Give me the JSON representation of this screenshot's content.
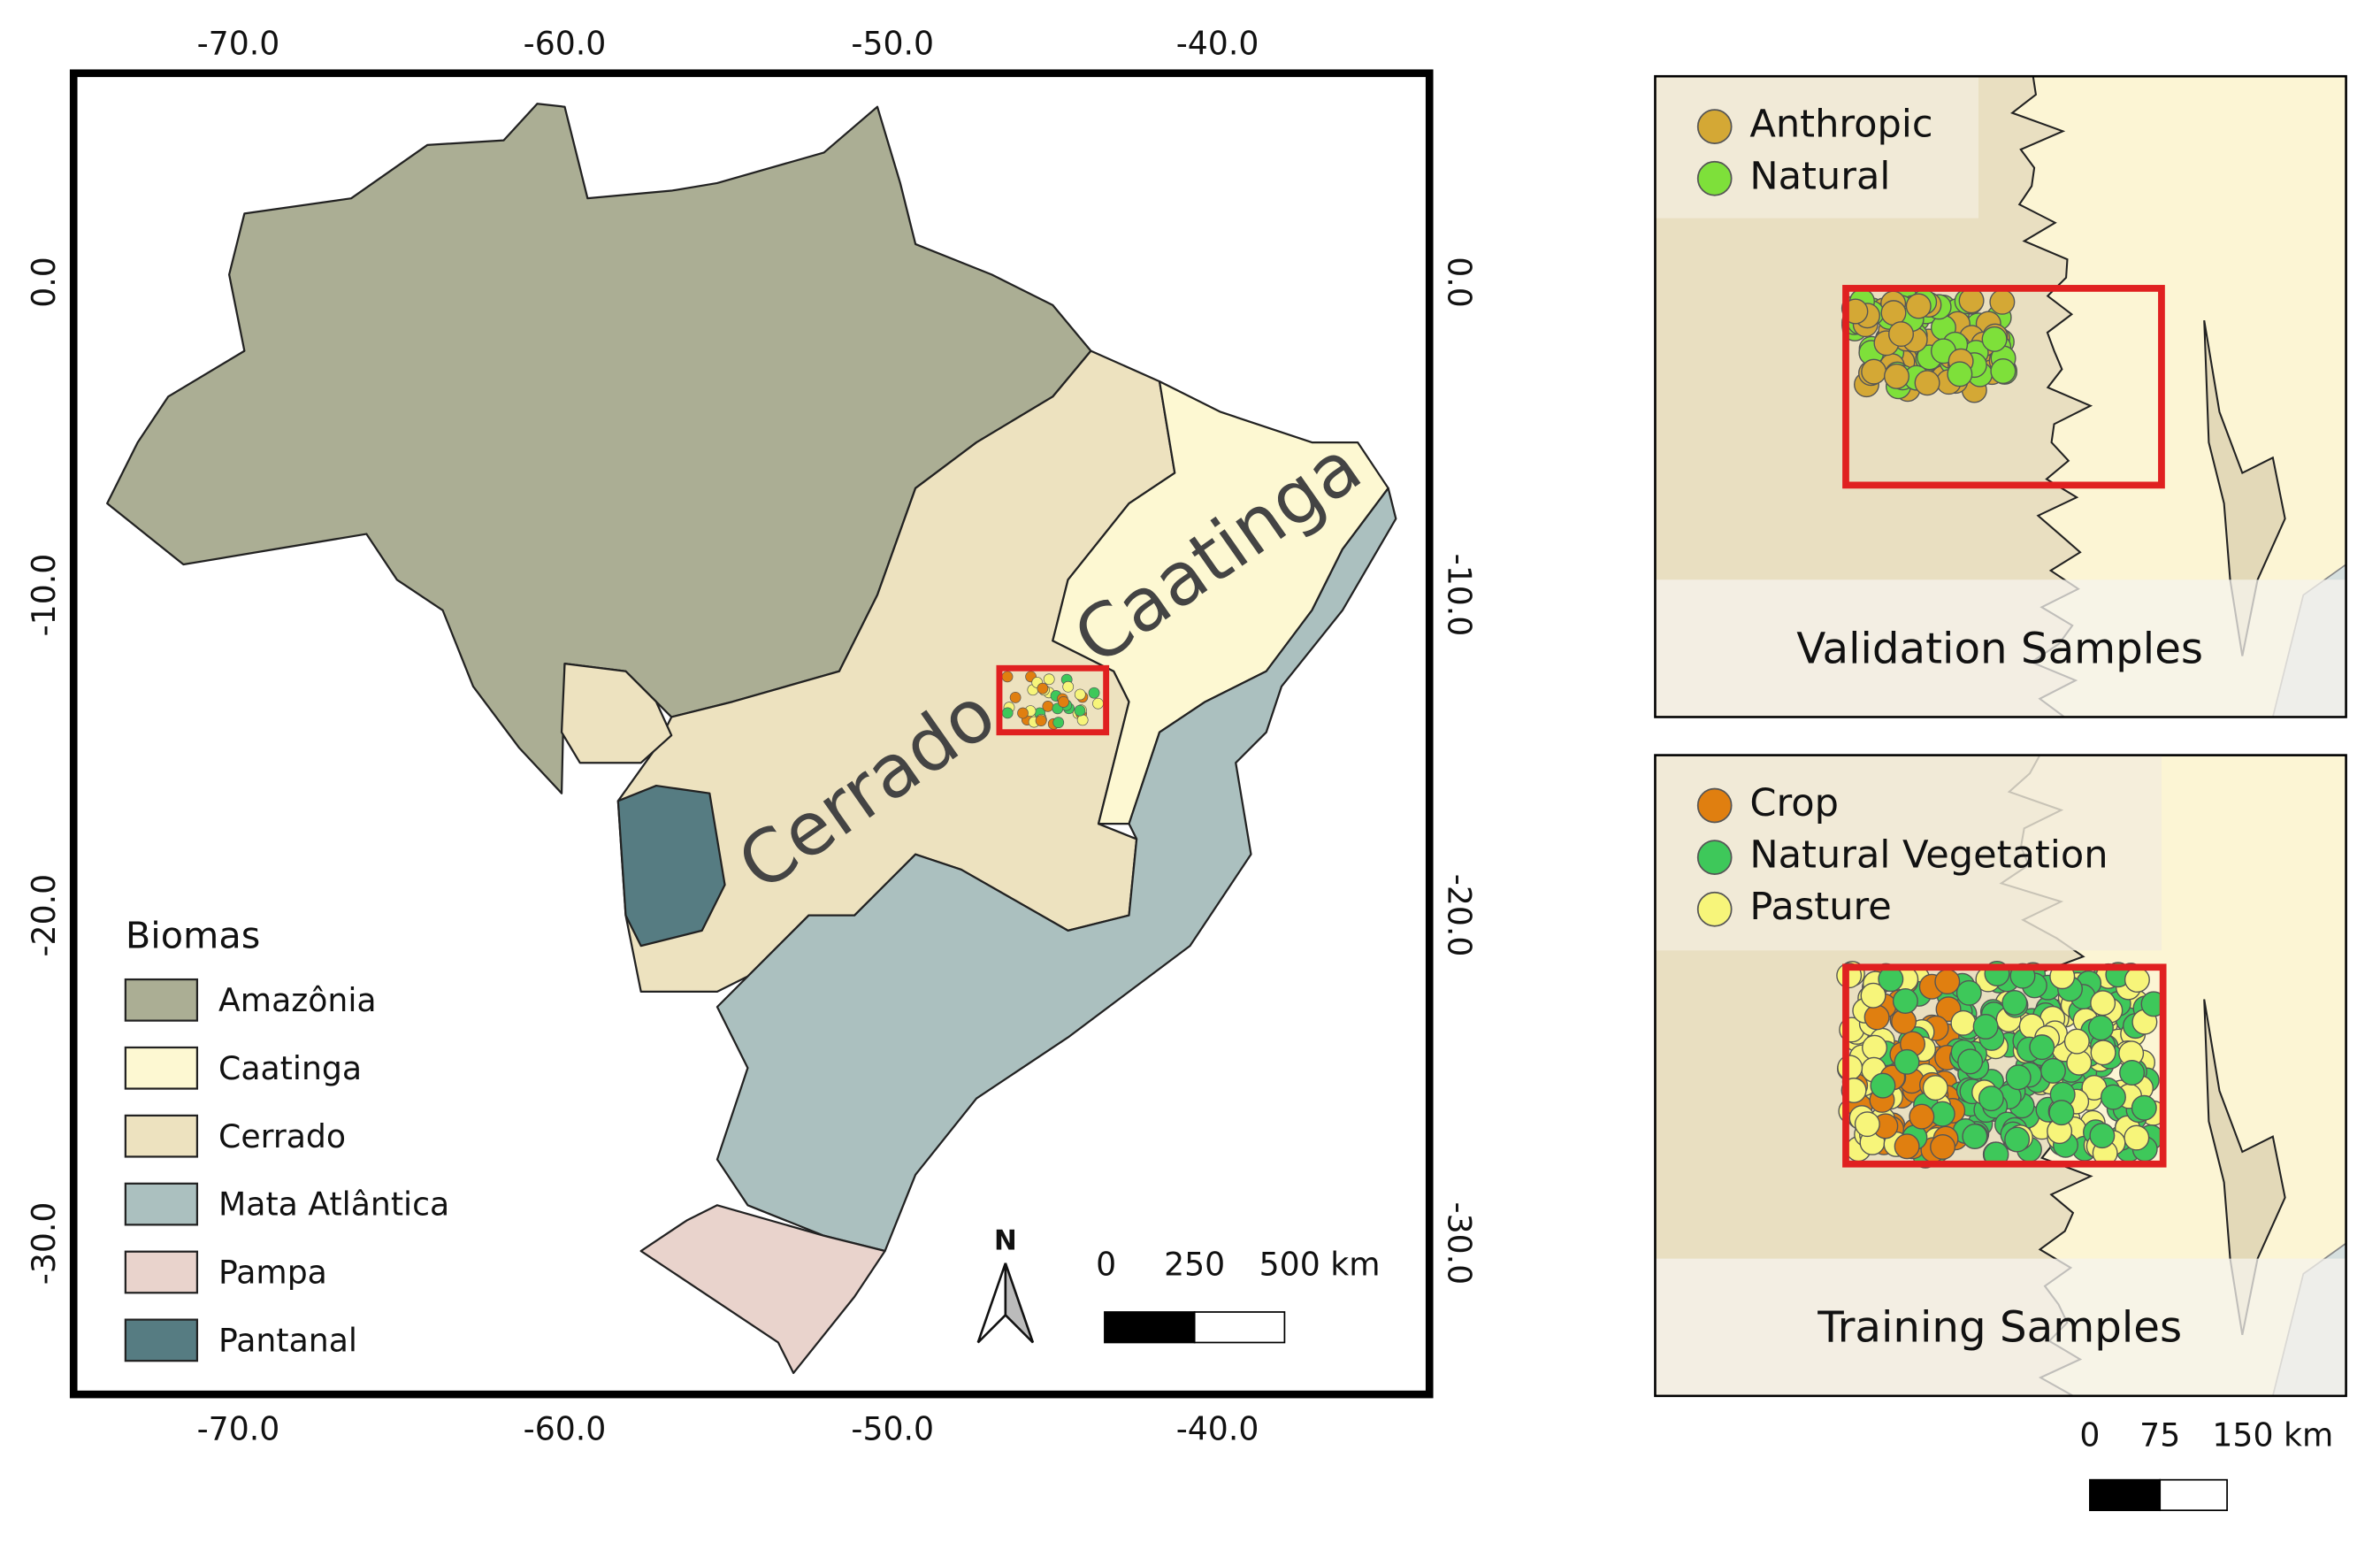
{
  "main_map": {
    "top_ticks": [
      "-70.0",
      "-60.0",
      "-50.0",
      "-40.0"
    ],
    "bottom_ticks": [
      "-70.0",
      "-60.0",
      "-50.0",
      "-40.0"
    ],
    "left_ticks": [
      "0.0",
      "-10.0",
      "-20.0",
      "-30.0"
    ],
    "right_ticks": [
      "0.0",
      "-10.0",
      "-20.0",
      "-30.0"
    ],
    "labels": [
      "Cerrado",
      "Caatinga"
    ],
    "north": "N",
    "scale": [
      "0",
      "250",
      "500 km"
    ]
  },
  "legend": {
    "title": "Biomas",
    "items": [
      {
        "label": "Amazônia",
        "color": "#abae94"
      },
      {
        "label": "Caatinga",
        "color": "#fdf8d2"
      },
      {
        "label": "Cerrado",
        "color": "#ede2bf"
      },
      {
        "label": "Mata Atlântica",
        "color": "#abc0bf"
      },
      {
        "label": "Pampa",
        "color": "#e9d3cc"
      },
      {
        "label": "Pantanal",
        "color": "#567c82"
      }
    ]
  },
  "validation_panel": {
    "title": "Validation Samples",
    "legend": [
      {
        "label": "Anthropic",
        "color": "#d4a835"
      },
      {
        "label": "Natural",
        "color": "#7ee03a"
      }
    ]
  },
  "training_panel": {
    "title": "Training Samples",
    "legend": [
      {
        "label": "Crop",
        "color": "#e07f10"
      },
      {
        "label": "Natural Vegetation",
        "color": "#3ec85a"
      },
      {
        "label": "Pasture",
        "color": "#f7f57a"
      }
    ]
  },
  "inset_scale": [
    "0",
    "75",
    "150 km"
  ]
}
